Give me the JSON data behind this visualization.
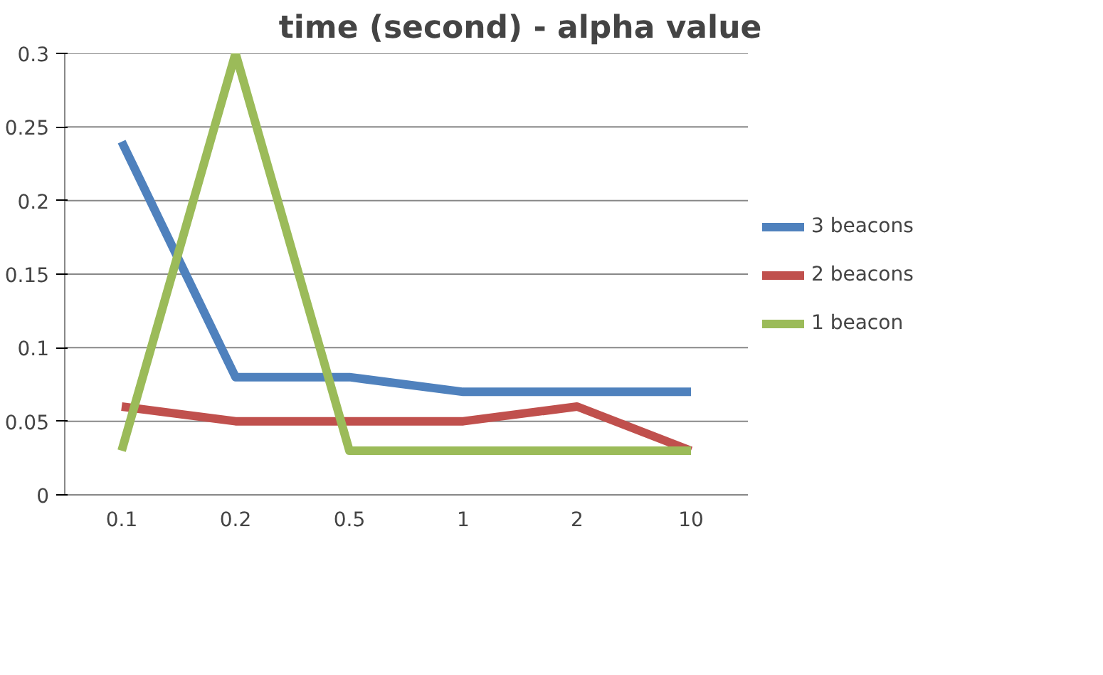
{
  "chart_data": {
    "type": "line",
    "title": "time (second) - alpha value",
    "categories": [
      "0.1",
      "0.2",
      "0.5",
      "1",
      "2",
      "10"
    ],
    "series": [
      {
        "name": "3 beacons",
        "color": "#4f81bd",
        "values": [
          0.24,
          0.08,
          0.08,
          0.07,
          0.07,
          0.07
        ]
      },
      {
        "name": "2 beacons",
        "color": "#c0504d",
        "values": [
          0.06,
          0.05,
          0.05,
          0.05,
          0.06,
          0.03
        ]
      },
      {
        "name": "1 beacon",
        "color": "#9bbb59",
        "values": [
          0.03,
          0.3,
          0.03,
          0.03,
          0.03,
          0.03
        ]
      }
    ],
    "ylim": [
      0,
      0.3
    ],
    "yticks": [
      0,
      0.05,
      0.1,
      0.15,
      0.2,
      0.25,
      0.3
    ],
    "grid": "y",
    "legend": "right",
    "marker": "none",
    "line_style": "solid"
  }
}
